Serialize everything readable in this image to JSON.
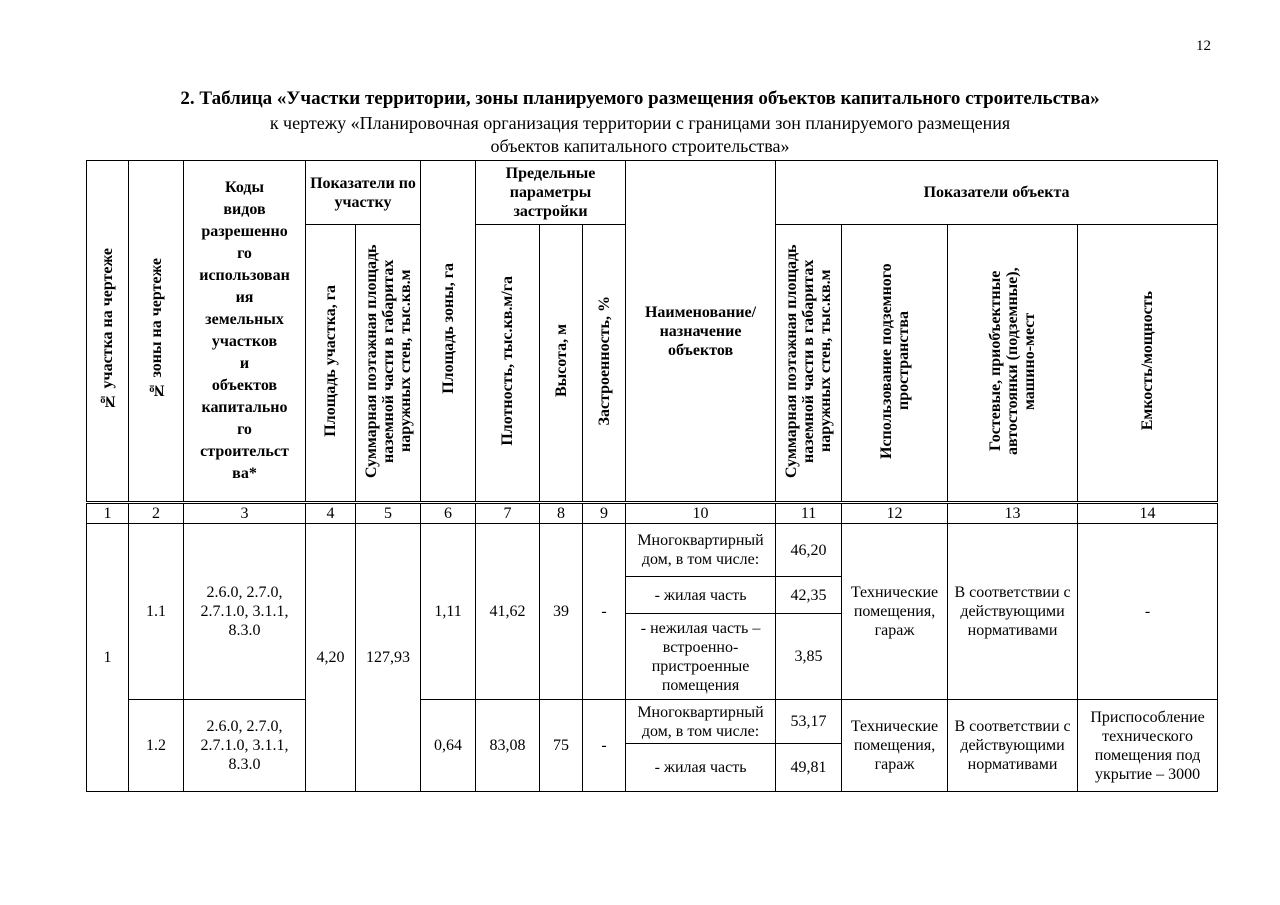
{
  "page_number": "12",
  "title": "2. Таблица «Участки территории, зоны планируемого размещения объектов капитального строительства»",
  "subtitle_line1": "к чертежу «Планировочная организация территории с границами зон планируемого размещения",
  "subtitle_line2": "объектов капитального строительства»",
  "headers": {
    "c1": "№ участка на чертеже",
    "c2": "№ зоны на чертеже",
    "c3": "Коды видов разрешенно го использован ия земельных участков и объектов капитально го строительст ва*",
    "g45": "Показатели по участку",
    "c4": "Площадь участка, га",
    "c5": "Суммарная поэтажная площадь наземной части в габаритах наружных стен, тыс.кв.м",
    "c6": "Площадь зоны, га",
    "g79": "Предельные параметры застройки",
    "c7": "Плотность, тыс.кв.м/га",
    "c8": "Высота, м",
    "c9": "Застроенность, %",
    "c10": "Наименование/ назначение объектов",
    "g1114": "Показатели объекта",
    "c11": "Суммарная поэтажная площадь наземной части в габаритах наружных стен, тыс.кв.м",
    "c12": "Использование подземного пространства",
    "c13": "Гостевые, приобъектные автостоянки (подземные), машино-мест",
    "c14": "Емкость/мощность"
  },
  "column_numbers": [
    "1",
    "2",
    "3",
    "4",
    "5",
    "6",
    "7",
    "8",
    "9",
    "10",
    "11",
    "12",
    "13",
    "14"
  ],
  "plot": {
    "number": "1",
    "area": "4,20",
    "total_floor_area": "127,93",
    "zones": [
      {
        "number": "1.1",
        "codes": "2.6.0, 2.7.0, 2.7.1.0, 3.1.1, 8.3.0",
        "zone_area": "1,11",
        "density": "41,62",
        "height": "39",
        "coverage": "-",
        "objects": [
          {
            "name": "Многоквартирный дом, в том числе:",
            "area": "46,20"
          },
          {
            "name": "- жилая часть",
            "area": "42,35"
          },
          {
            "name": "- нежилая часть – встроенно-пристроенные помещения",
            "area": "3,85"
          }
        ],
        "underground": "Технические помещения, гараж",
        "parking": "В соответствии с действующими нормативами",
        "capacity": "-"
      },
      {
        "number": "1.2",
        "codes": "2.6.0, 2.7.0, 2.7.1.0, 3.1.1, 8.3.0",
        "zone_area": "0,64",
        "density": "83,08",
        "height": "75",
        "coverage": "-",
        "objects": [
          {
            "name": "Многоквартирный дом, в том числе:",
            "area": "53,17"
          },
          {
            "name": "- жилая часть",
            "area": "49,81"
          }
        ],
        "underground": "Технические помещения, гараж",
        "parking": "В соответствии с действующими нормативами",
        "capacity": "Приспособление технического помещения под укрытие – 3000"
      }
    ]
  }
}
